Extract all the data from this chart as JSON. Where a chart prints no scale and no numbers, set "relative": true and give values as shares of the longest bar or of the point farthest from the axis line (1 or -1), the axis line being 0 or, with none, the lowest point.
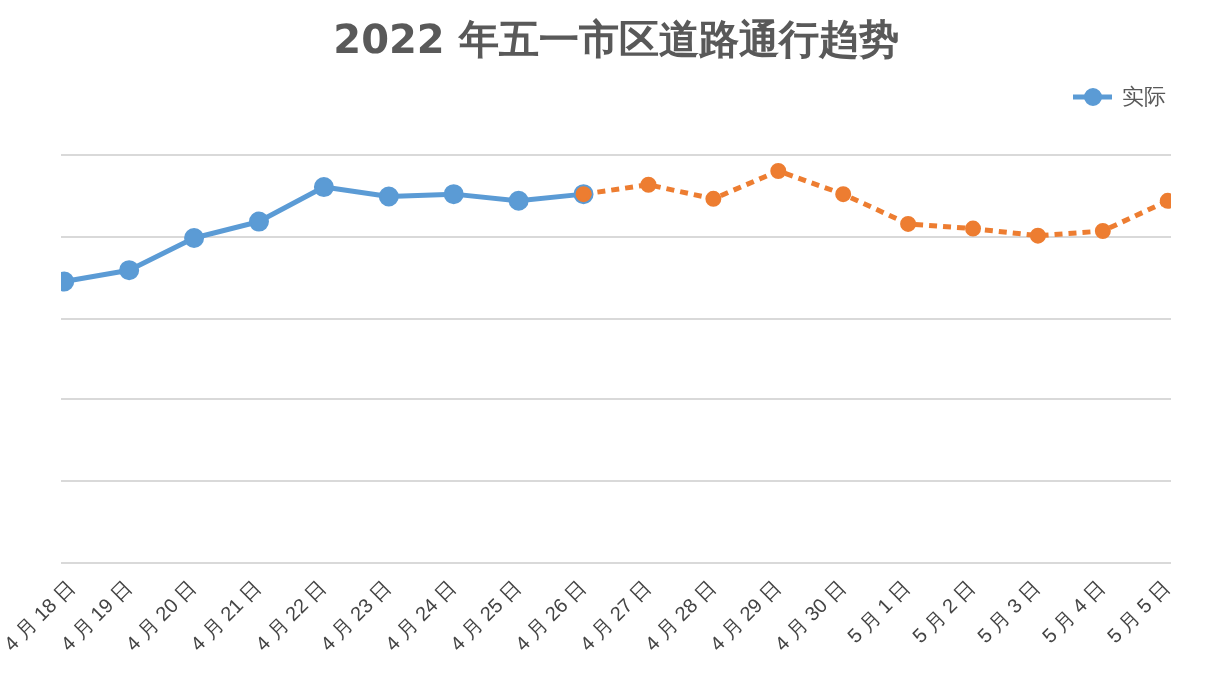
{
  "chart_data": {
    "type": "line",
    "title": "2022 年五一市区道路通行趋势",
    "relative": true,
    "grid": "y",
    "legend": "top right",
    "marker": "circle",
    "categories": [
      "4 月 18 日",
      "4 月 19 日",
      "4 月 20 日",
      "4 月 21 日",
      "4 月 22 日",
      "4 月 23 日",
      "4 月 24 日",
      "4 月 25 日",
      "4 月 26 日",
      "4 月 27 日",
      "4 月 28 日",
      "4 月 29 日",
      "4 月 30 日",
      "5 月 1 日",
      "5 月 2 日",
      "5 月 3 日",
      "5 月 4 日",
      "5 月 5 日"
    ],
    "series": [
      {
        "name": "实际",
        "color": "#5b9bd5",
        "line_style": "solid",
        "values": [
          0.718,
          0.747,
          0.829,
          0.871,
          0.959,
          0.935,
          0.941,
          0.924,
          0.941,
          null,
          null,
          null,
          null,
          null,
          null,
          null,
          null,
          null
        ]
      },
      {
        "color": "#ed7d31",
        "line_style": "dashed",
        "values": [
          null,
          null,
          null,
          null,
          null,
          null,
          null,
          null,
          0.941,
          0.965,
          0.929,
          1,
          0.941,
          0.865,
          0.853,
          0.835,
          0.847,
          0.924
        ]
      }
    ]
  }
}
